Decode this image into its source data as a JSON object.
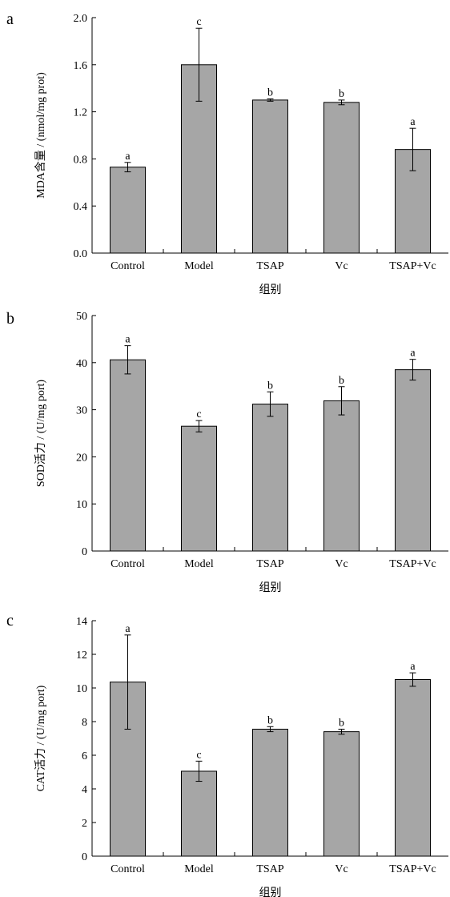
{
  "chart_data": [
    {
      "panel_label": "a",
      "type": "bar",
      "categories": [
        "Control",
        "Model",
        "TSAP",
        "Vc",
        "TSAP+Vc"
      ],
      "values": [
        0.73,
        1.6,
        1.3,
        1.28,
        0.88
      ],
      "errors": [
        0.04,
        0.31,
        0.01,
        0.02,
        0.18
      ],
      "significance": [
        "a",
        "c",
        "b",
        "b",
        "a"
      ],
      "ylabel": "MDA含量 / (nmol/mg prot)",
      "xlabel": "组别",
      "ylim": [
        0,
        2.0
      ],
      "yticks": [
        "0.0",
        "0.4",
        "0.8",
        "1.2",
        "1.6",
        "2.0"
      ]
    },
    {
      "panel_label": "b",
      "type": "bar",
      "categories": [
        "Control",
        "Model",
        "TSAP",
        "Vc",
        "TSAP+Vc"
      ],
      "values": [
        40.6,
        26.5,
        31.2,
        31.9,
        38.5
      ],
      "errors": [
        3.0,
        1.2,
        2.6,
        3.0,
        2.2
      ],
      "significance": [
        "a",
        "c",
        "b",
        "b",
        "a"
      ],
      "ylabel": "SOD活力 / (U/mg port)",
      "xlabel": "组别",
      "ylim": [
        0,
        50
      ],
      "yticks": [
        "0",
        "10",
        "20",
        "30",
        "40",
        "50"
      ]
    },
    {
      "panel_label": "c",
      "type": "bar",
      "categories": [
        "Control",
        "Model",
        "TSAP",
        "Vc",
        "TSAP+Vc"
      ],
      "values": [
        10.35,
        5.05,
        7.55,
        7.4,
        10.5
      ],
      "errors": [
        2.8,
        0.6,
        0.15,
        0.15,
        0.4
      ],
      "significance": [
        "a",
        "c",
        "b",
        "b",
        "a"
      ],
      "ylabel": "CAT活力 / (U/mg port)",
      "xlabel": "组别",
      "ylim": [
        0,
        14
      ],
      "yticks": [
        "0",
        "2",
        "4",
        "6",
        "8",
        "10",
        "12",
        "14"
      ]
    }
  ]
}
